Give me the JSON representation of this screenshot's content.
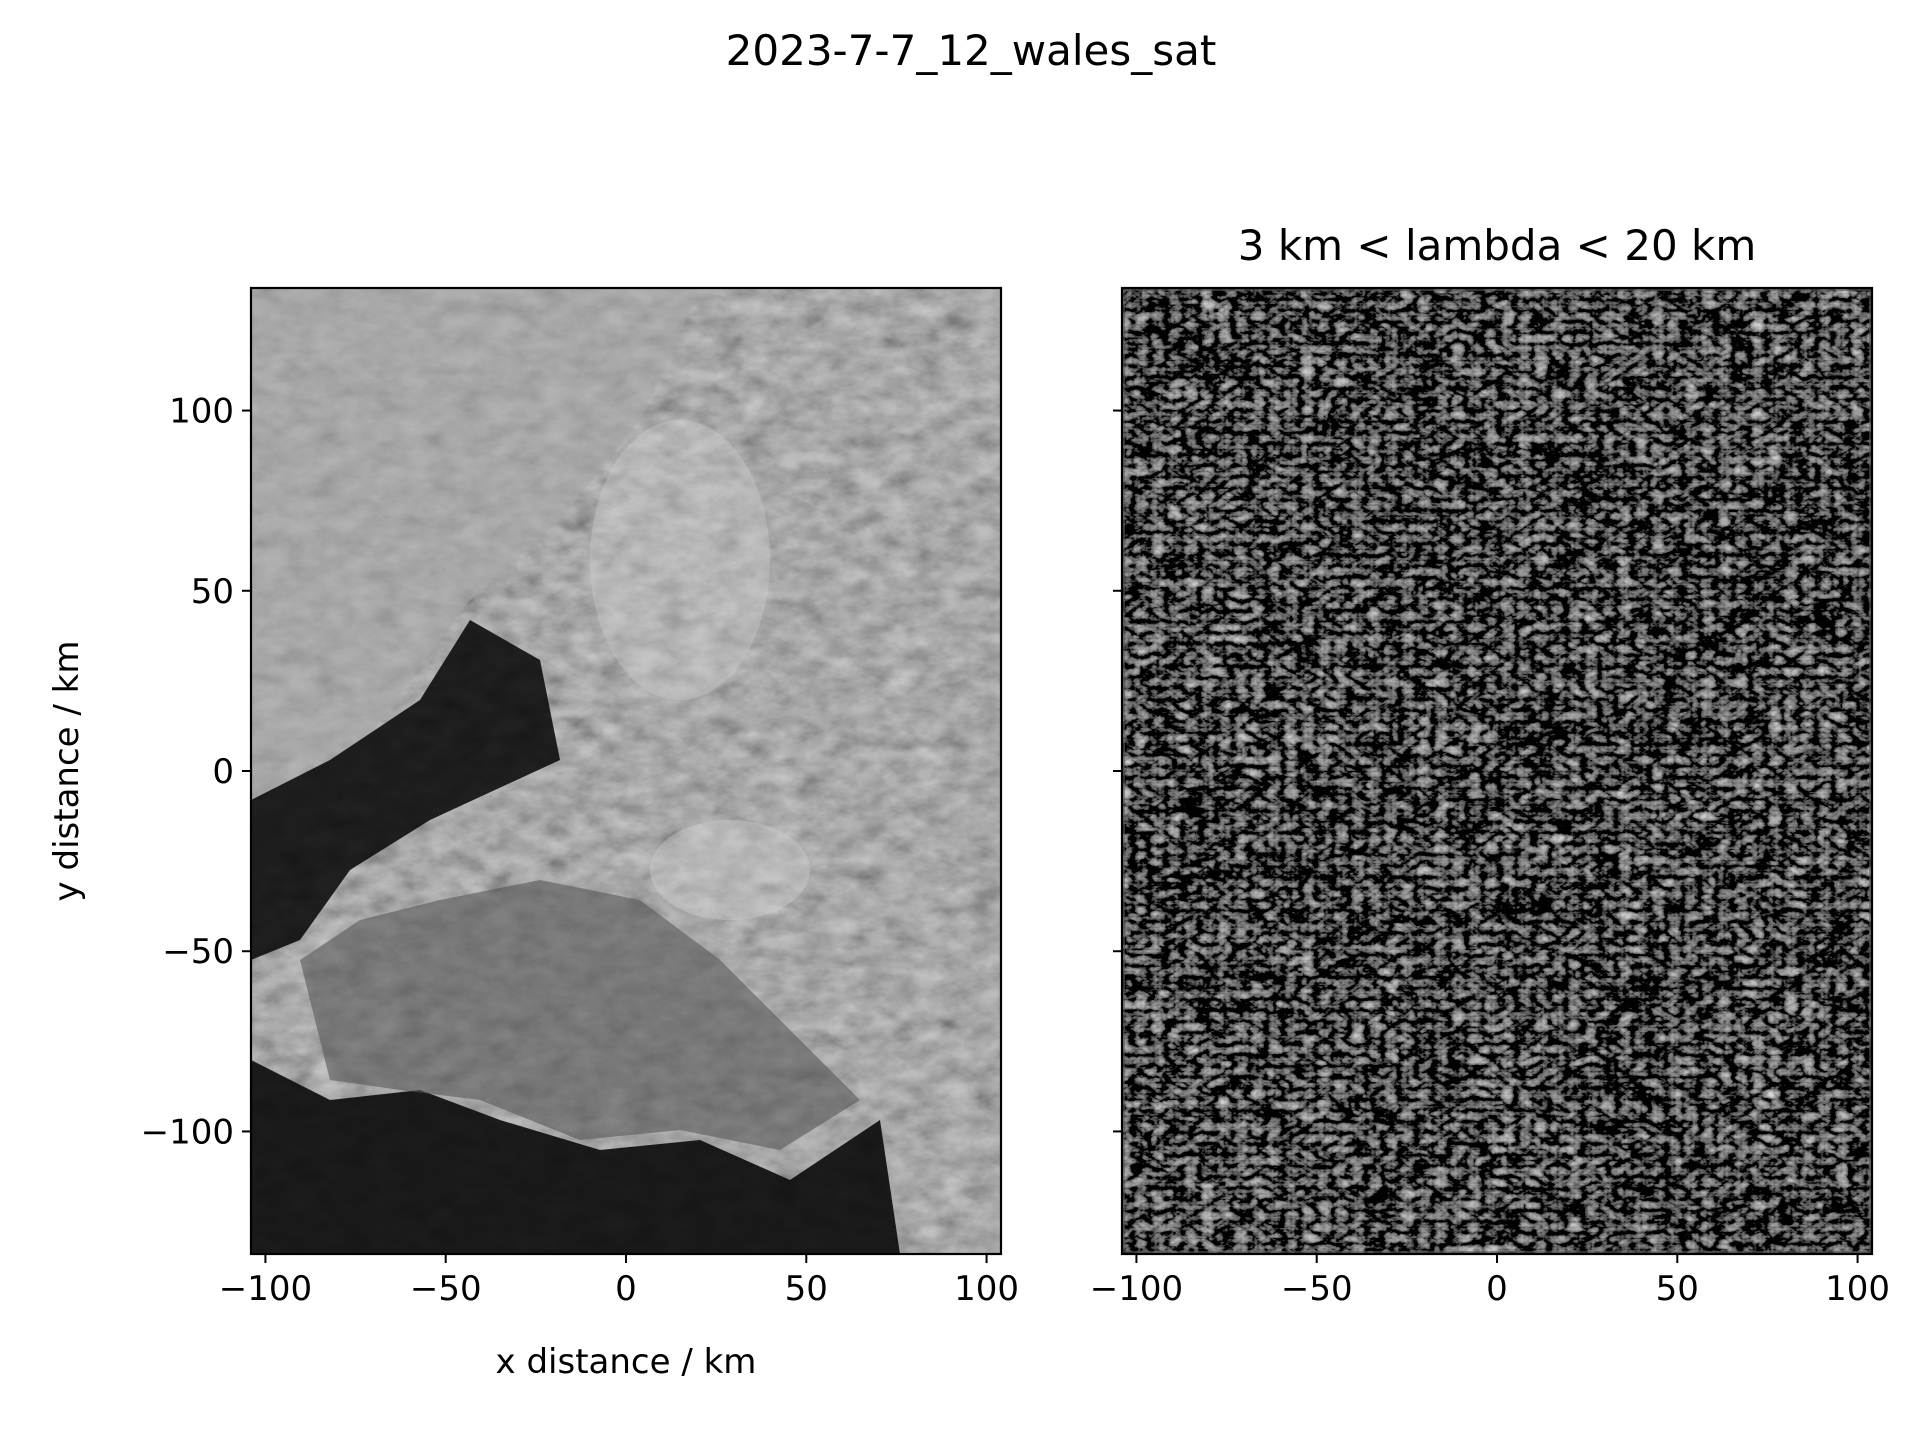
{
  "figure": {
    "suptitle": "2023-7-7_12_wales_sat"
  },
  "chart_data": [
    {
      "type": "heatmap",
      "title": "",
      "xlabel": "x distance / km",
      "ylabel": "y distance / km",
      "xlim": [
        -104,
        104
      ],
      "ylim": [
        -134,
        134
      ],
      "xticks": [
        -100,
        -50,
        0,
        50,
        100
      ],
      "yticks": [
        -100,
        -50,
        0,
        50,
        100
      ],
      "xtick_labels": [
        "−100",
        "−50",
        "0",
        "50",
        "100"
      ],
      "ytick_labels": [
        "−100",
        "−50",
        "0",
        "50",
        "100"
      ],
      "colormap": "gray",
      "grid": false
    },
    {
      "type": "heatmap",
      "title": "3 km < lambda < 20 km",
      "xlabel": "",
      "ylabel": "",
      "xlim": [
        -104,
        104
      ],
      "ylim": [
        -134,
        134
      ],
      "xticks": [
        -100,
        -50,
        0,
        50,
        100
      ],
      "yticks": [
        -100,
        -50,
        0,
        50,
        100
      ],
      "xtick_labels": [
        "−100",
        "−50",
        "0",
        "50",
        "100"
      ],
      "ytick_labels": [],
      "colormap": "gray",
      "grid": false
    }
  ]
}
